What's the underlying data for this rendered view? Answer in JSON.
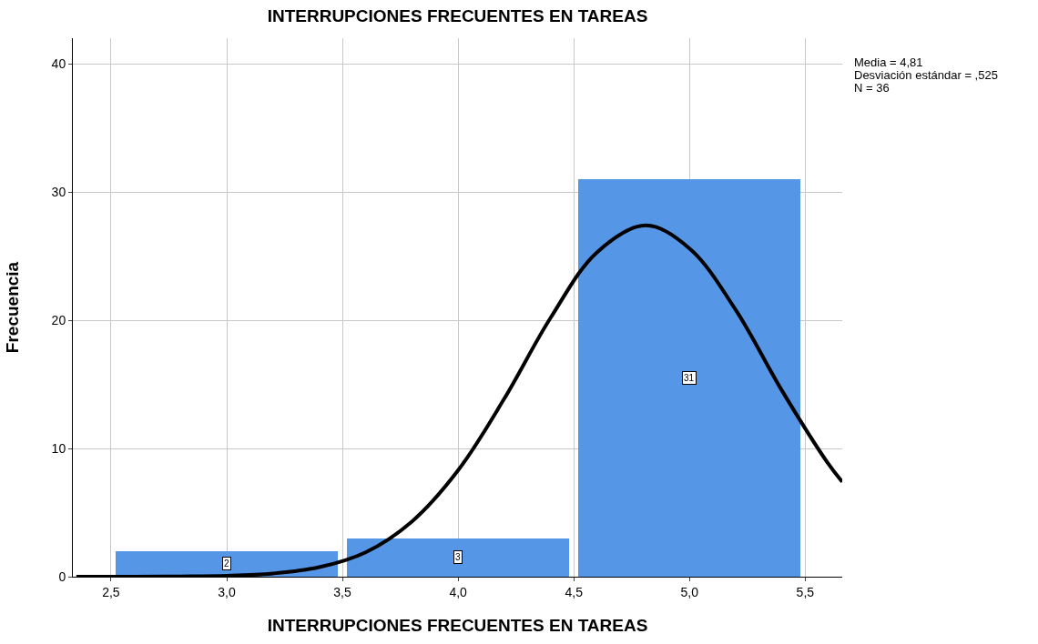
{
  "chart_data": {
    "type": "histogram",
    "title": "INTERRUPCIONES FRECUENTES EN TAREAS",
    "xlabel": "INTERRUPCIONES FRECUENTES EN TAREAS",
    "ylabel": "Frecuencia",
    "bins": [
      2.5,
      3.5,
      4.5,
      5.5
    ],
    "values": [
      2,
      3,
      31
    ],
    "color": "#5596e6",
    "value_labels": [
      "2",
      "3",
      "31"
    ],
    "series": [
      {
        "type": "line",
        "color": "#000000",
        "x": [
          2.35,
          2.6,
          2.8,
          3.0,
          3.2,
          3.4,
          3.6,
          3.8,
          4.0,
          4.2,
          4.4,
          4.6,
          4.81,
          5.0,
          5.2,
          5.4,
          5.6,
          5.66
        ],
        "values": [
          0,
          0,
          0.02,
          0.07,
          0.25,
          0.74,
          1.9,
          4.3,
          8.3,
          13.9,
          20.2,
          25.3,
          27.4,
          25.6,
          20.8,
          14.5,
          8.8,
          7.4
        ]
      }
    ],
    "xlim": [
      2.335,
      5.66
    ],
    "xticks": [
      {
        "value": 2.5,
        "label": "2,5"
      },
      {
        "value": 3.0,
        "label": "3,0"
      },
      {
        "value": 3.5,
        "label": "3,5"
      },
      {
        "value": 4.0,
        "label": "4,0"
      },
      {
        "value": 4.5,
        "label": "4,5"
      },
      {
        "value": 5.0,
        "label": "5,0"
      },
      {
        "value": 5.5,
        "label": "5,5"
      }
    ],
    "ylim": [
      0,
      42
    ],
    "yticks": [
      0,
      10,
      20,
      30,
      40
    ],
    "grid": true,
    "annotations": [
      "Media = 4,81",
      "Desviación estándar = ,525",
      "N = 36"
    ]
  }
}
